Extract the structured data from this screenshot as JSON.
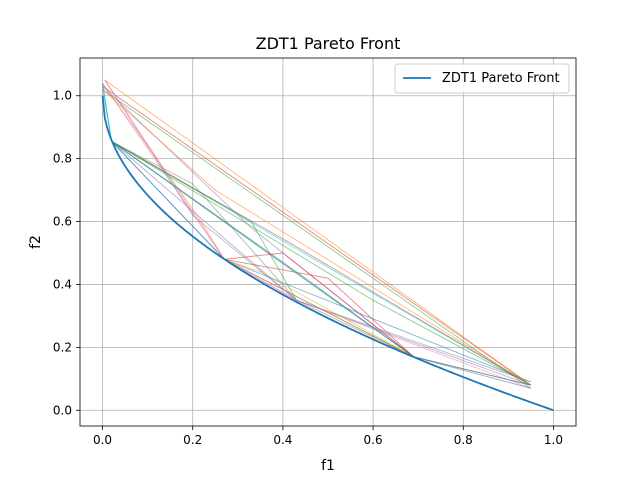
{
  "chart_data": {
    "type": "line",
    "title": "ZDT1 Pareto Front",
    "xlabel": "f1",
    "ylabel": "f2",
    "xlim": [
      -0.05,
      1.05
    ],
    "ylim": [
      -0.05,
      1.12
    ],
    "xticks": [
      0.0,
      0.2,
      0.4,
      0.6,
      0.8,
      1.0
    ],
    "yticks": [
      0.0,
      0.2,
      0.4,
      0.6,
      0.8,
      1.0
    ],
    "xtick_labels": [
      "0.0",
      "0.2",
      "0.4",
      "0.6",
      "0.8",
      "1.0"
    ],
    "ytick_labels": [
      "0.0",
      "0.2",
      "0.4",
      "0.6",
      "0.8",
      "1.0"
    ],
    "grid": true,
    "legend": {
      "placement": "top-right",
      "entries": [
        "ZDT1 Pareto Front"
      ]
    },
    "series": [
      {
        "name": "ZDT1 Pareto Front",
        "color": "#1f77b4",
        "function": "f2 = 1 - sqrt(f1)",
        "x_range": [
          0,
          1
        ]
      }
    ],
    "population_polylines": {
      "colors": [
        "#1f77b4",
        "#ff7f0e",
        "#2ca02c",
        "#d62728",
        "#9467bd",
        "#8c564b",
        "#e377c2",
        "#7f7f7f",
        "#bcbd22",
        "#17becf"
      ],
      "nodes": [
        [
          0.0,
          1.04
        ],
        [
          0.005,
          1.05
        ],
        [
          0.0,
          1.02
        ],
        [
          0.02,
          0.855
        ],
        [
          0.27,
          0.48
        ],
        [
          0.43,
          0.35
        ],
        [
          0.69,
          0.17
        ],
        [
          0.95,
          0.08
        ],
        [
          0.95,
          0.07
        ],
        [
          0.94,
          0.09
        ]
      ],
      "paths": [
        [
          [
            0.0,
            1.04
          ],
          [
            0.02,
            0.855
          ],
          [
            0.27,
            0.48
          ],
          [
            0.69,
            0.17
          ],
          [
            0.95,
            0.08
          ]
        ],
        [
          [
            0.005,
            1.05
          ],
          [
            0.95,
            0.08
          ]
        ],
        [
          [
            0.0,
            1.02
          ],
          [
            0.95,
            0.07
          ]
        ],
        [
          [
            0.0,
            1.03
          ],
          [
            0.94,
            0.09
          ]
        ],
        [
          [
            0.02,
            0.855
          ],
          [
            0.43,
            0.35
          ],
          [
            0.95,
            0.08
          ]
        ],
        [
          [
            0.02,
            0.855
          ],
          [
            0.69,
            0.17
          ],
          [
            0.95,
            0.08
          ]
        ],
        [
          [
            0.0,
            1.04
          ],
          [
            0.27,
            0.48
          ],
          [
            0.43,
            0.35
          ],
          [
            0.95,
            0.07
          ]
        ],
        [
          [
            0.005,
            1.05
          ],
          [
            0.2,
            0.62
          ],
          [
            0.43,
            0.35
          ],
          [
            0.69,
            0.17
          ]
        ],
        [
          [
            0.02,
            0.855
          ],
          [
            0.21,
            0.66
          ],
          [
            0.69,
            0.17
          ]
        ],
        [
          [
            0.0,
            1.02
          ],
          [
            0.02,
            0.855
          ],
          [
            0.95,
            0.08
          ]
        ],
        [
          [
            0.02,
            0.855
          ],
          [
            0.27,
            0.48
          ],
          [
            0.95,
            0.09
          ]
        ],
        [
          [
            0.0,
            1.04
          ],
          [
            0.21,
            0.62
          ],
          [
            0.27,
            0.48
          ],
          [
            0.69,
            0.17
          ]
        ],
        [
          [
            0.02,
            0.855
          ],
          [
            0.33,
            0.6
          ],
          [
            0.43,
            0.35
          ]
        ],
        [
          [
            0.27,
            0.48
          ],
          [
            0.5,
            0.42
          ],
          [
            0.69,
            0.17
          ]
        ],
        [
          [
            0.0,
            1.03
          ],
          [
            0.33,
            0.58
          ],
          [
            0.69,
            0.17
          ]
        ],
        [
          [
            0.02,
            0.855
          ],
          [
            0.43,
            0.52
          ],
          [
            0.95,
            0.08
          ]
        ],
        [
          [
            0.005,
            1.05
          ],
          [
            0.27,
            0.48
          ],
          [
            0.43,
            0.35
          ]
        ],
        [
          [
            0.02,
            0.855
          ],
          [
            0.2,
            0.72
          ],
          [
            0.43,
            0.35
          ],
          [
            0.95,
            0.09
          ]
        ],
        [
          [
            0.27,
            0.48
          ],
          [
            0.35,
            0.44
          ],
          [
            0.69,
            0.17
          ]
        ],
        [
          [
            0.0,
            1.04
          ],
          [
            0.02,
            0.855
          ],
          [
            0.69,
            0.17
          ]
        ],
        [
          [
            0.02,
            0.855
          ],
          [
            0.45,
            0.42
          ],
          [
            0.69,
            0.17
          ],
          [
            0.95,
            0.07
          ]
        ],
        [
          [
            0.0,
            1.02
          ],
          [
            0.25,
            0.7
          ],
          [
            0.95,
            0.08
          ]
        ],
        [
          [
            0.02,
            0.855
          ],
          [
            0.6,
            0.35
          ],
          [
            0.95,
            0.08
          ]
        ],
        [
          [
            0.27,
            0.48
          ],
          [
            0.4,
            0.5
          ],
          [
            0.69,
            0.17
          ]
        ]
      ]
    }
  }
}
